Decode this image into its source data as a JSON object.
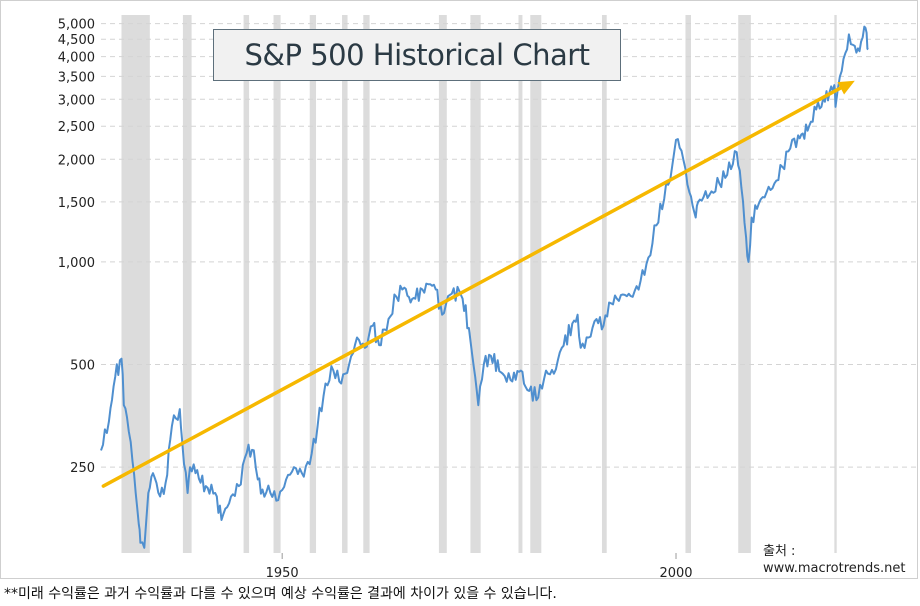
{
  "title": "S&P 500 Historical Chart",
  "source": {
    "label": "출처 :",
    "site": "www.macrotrends.net"
  },
  "footnote": "**미래 수익률은 과거 수익률과 다를 수 있으며 예상 수익률은 결과에 차이가 있을 수 있습니다.",
  "chart_data": {
    "type": "line",
    "title": "S&P 500 Historical Chart",
    "xlabel": "",
    "ylabel": "",
    "y_scale": "log",
    "ylim": [
      140,
      5300
    ],
    "xlim": [
      1927,
      2024.5
    ],
    "x_tick_labels": [
      {
        "x": 1950,
        "label": "1950"
      },
      {
        "x": 2000,
        "label": "2000"
      }
    ],
    "y_tick_labels": [
      {
        "y": 250,
        "label": "250"
      },
      {
        "y": 500,
        "label": "500"
      },
      {
        "y": 1000,
        "label": "1,000"
      },
      {
        "y": 1500,
        "label": "1,500"
      },
      {
        "y": 2000,
        "label": "2,000"
      },
      {
        "y": 2500,
        "label": "2,500"
      },
      {
        "y": 3000,
        "label": "3,000"
      },
      {
        "y": 3500,
        "label": "3,500"
      },
      {
        "y": 4000,
        "label": "4,000"
      },
      {
        "y": 4500,
        "label": "4,500"
      },
      {
        "y": 5000,
        "label": "5,000"
      }
    ],
    "grid": {
      "horizontal": true,
      "vertical": false
    },
    "colors": {
      "line": "#4f8fcf",
      "trend": "#f6b800",
      "recession": "#dcdcdc",
      "grid": "#d4d4d4"
    },
    "recessions": [
      [
        1929.6,
        1933.2
      ],
      [
        1937.4,
        1938.5
      ],
      [
        1945.1,
        1945.8
      ],
      [
        1948.9,
        1949.8
      ],
      [
        1953.5,
        1954.3
      ],
      [
        1957.6,
        1958.3
      ],
      [
        1960.3,
        1961.1
      ],
      [
        1969.9,
        1970.9
      ],
      [
        1973.9,
        1975.2
      ],
      [
        1980.0,
        1980.5
      ],
      [
        1981.5,
        1982.9
      ],
      [
        1990.6,
        1991.2
      ],
      [
        2001.2,
        2001.9
      ],
      [
        2007.9,
        2009.5
      ],
      [
        2020.1,
        2020.4
      ]
    ],
    "series": [
      {
        "x": [
          1927.0,
          1928.0,
          1928.8,
          1929.6,
          1929.9,
          1930.3,
          1931.0,
          1931.8,
          1932.0,
          1932.5,
          1933.0,
          1933.6,
          1934.5,
          1935.2,
          1936.0,
          1937.0,
          1937.3,
          1938.0,
          1938.3,
          1939.0,
          1940.3,
          1941.5,
          1942.3,
          1943.5,
          1944.5,
          1945.5,
          1946.4,
          1946.9,
          1947.5,
          1948.5,
          1949.5,
          1950.5,
          1951.5,
          1952.5,
          1953.5,
          1954.5,
          1955.5,
          1956.5,
          1957.5,
          1958.5,
          1959.5,
          1960.5,
          1961.5,
          1962.3,
          1963.5,
          1964.5,
          1965.5,
          1966.3,
          1966.9,
          1967.8,
          1968.8,
          1969.5,
          1970.3,
          1971.3,
          1972.5,
          1972.9,
          1973.7,
          1974.5,
          1974.9,
          1975.6,
          1976.5,
          1978.0,
          1979.0,
          1980.3,
          1980.9,
          1982.5,
          1983.5,
          1984.5,
          1985.5,
          1987.5,
          1987.9,
          1988.9,
          1989.9,
          1990.8,
          1991.5,
          1992.5,
          1993.5,
          1994.5,
          1995.5,
          1996.5,
          1997.5,
          1998.5,
          1999.5,
          2000.0,
          2000.7,
          2001.7,
          2002.5,
          2002.8,
          2003.5,
          2004.5,
          2005.5,
          2006.5,
          2007.7,
          2008.3,
          2008.9,
          2009.2,
          2009.6,
          2010.5,
          2011.5,
          2012.5,
          2013.5,
          2014.5,
          2015.5,
          2016.1,
          2016.9,
          2017.8,
          2018.9,
          2019.5,
          2020.1,
          2020.25,
          2020.8,
          2021.5,
          2021.95,
          2022.7,
          2023.3,
          2023.9,
          2024.2,
          2024.4
        ],
        "values": [
          280,
          340,
          460,
          520,
          380,
          350,
          260,
          170,
          150,
          145,
          210,
          240,
          205,
          225,
          330,
          370,
          300,
          210,
          250,
          240,
          220,
          210,
          175,
          205,
          220,
          275,
          280,
          230,
          215,
          210,
          200,
          230,
          250,
          240,
          255,
          330,
          440,
          480,
          440,
          500,
          600,
          560,
          650,
          570,
          680,
          790,
          840,
          760,
          780,
          830,
          860,
          830,
          700,
          800,
          820,
          780,
          640,
          460,
          380,
          500,
          530,
          470,
          450,
          480,
          430,
          400,
          480,
          470,
          560,
          700,
          560,
          600,
          680,
          650,
          760,
          780,
          800,
          790,
          880,
          1030,
          1280,
          1530,
          1900,
          2280,
          2120,
          1600,
          1350,
          1500,
          1550,
          1610,
          1700,
          1800,
          2100,
          1650,
          1180,
          1000,
          1350,
          1480,
          1600,
          1700,
          1900,
          2150,
          2350,
          2380,
          2500,
          2800,
          2950,
          3150,
          3300,
          2850,
          3500,
          4100,
          4650,
          4300,
          4150,
          4900,
          4700,
          4200
        ]
      }
    ],
    "trend_line": {
      "x": [
        1927.3,
        2022.7
      ],
      "y": [
        220,
        3400
      ]
    }
  }
}
